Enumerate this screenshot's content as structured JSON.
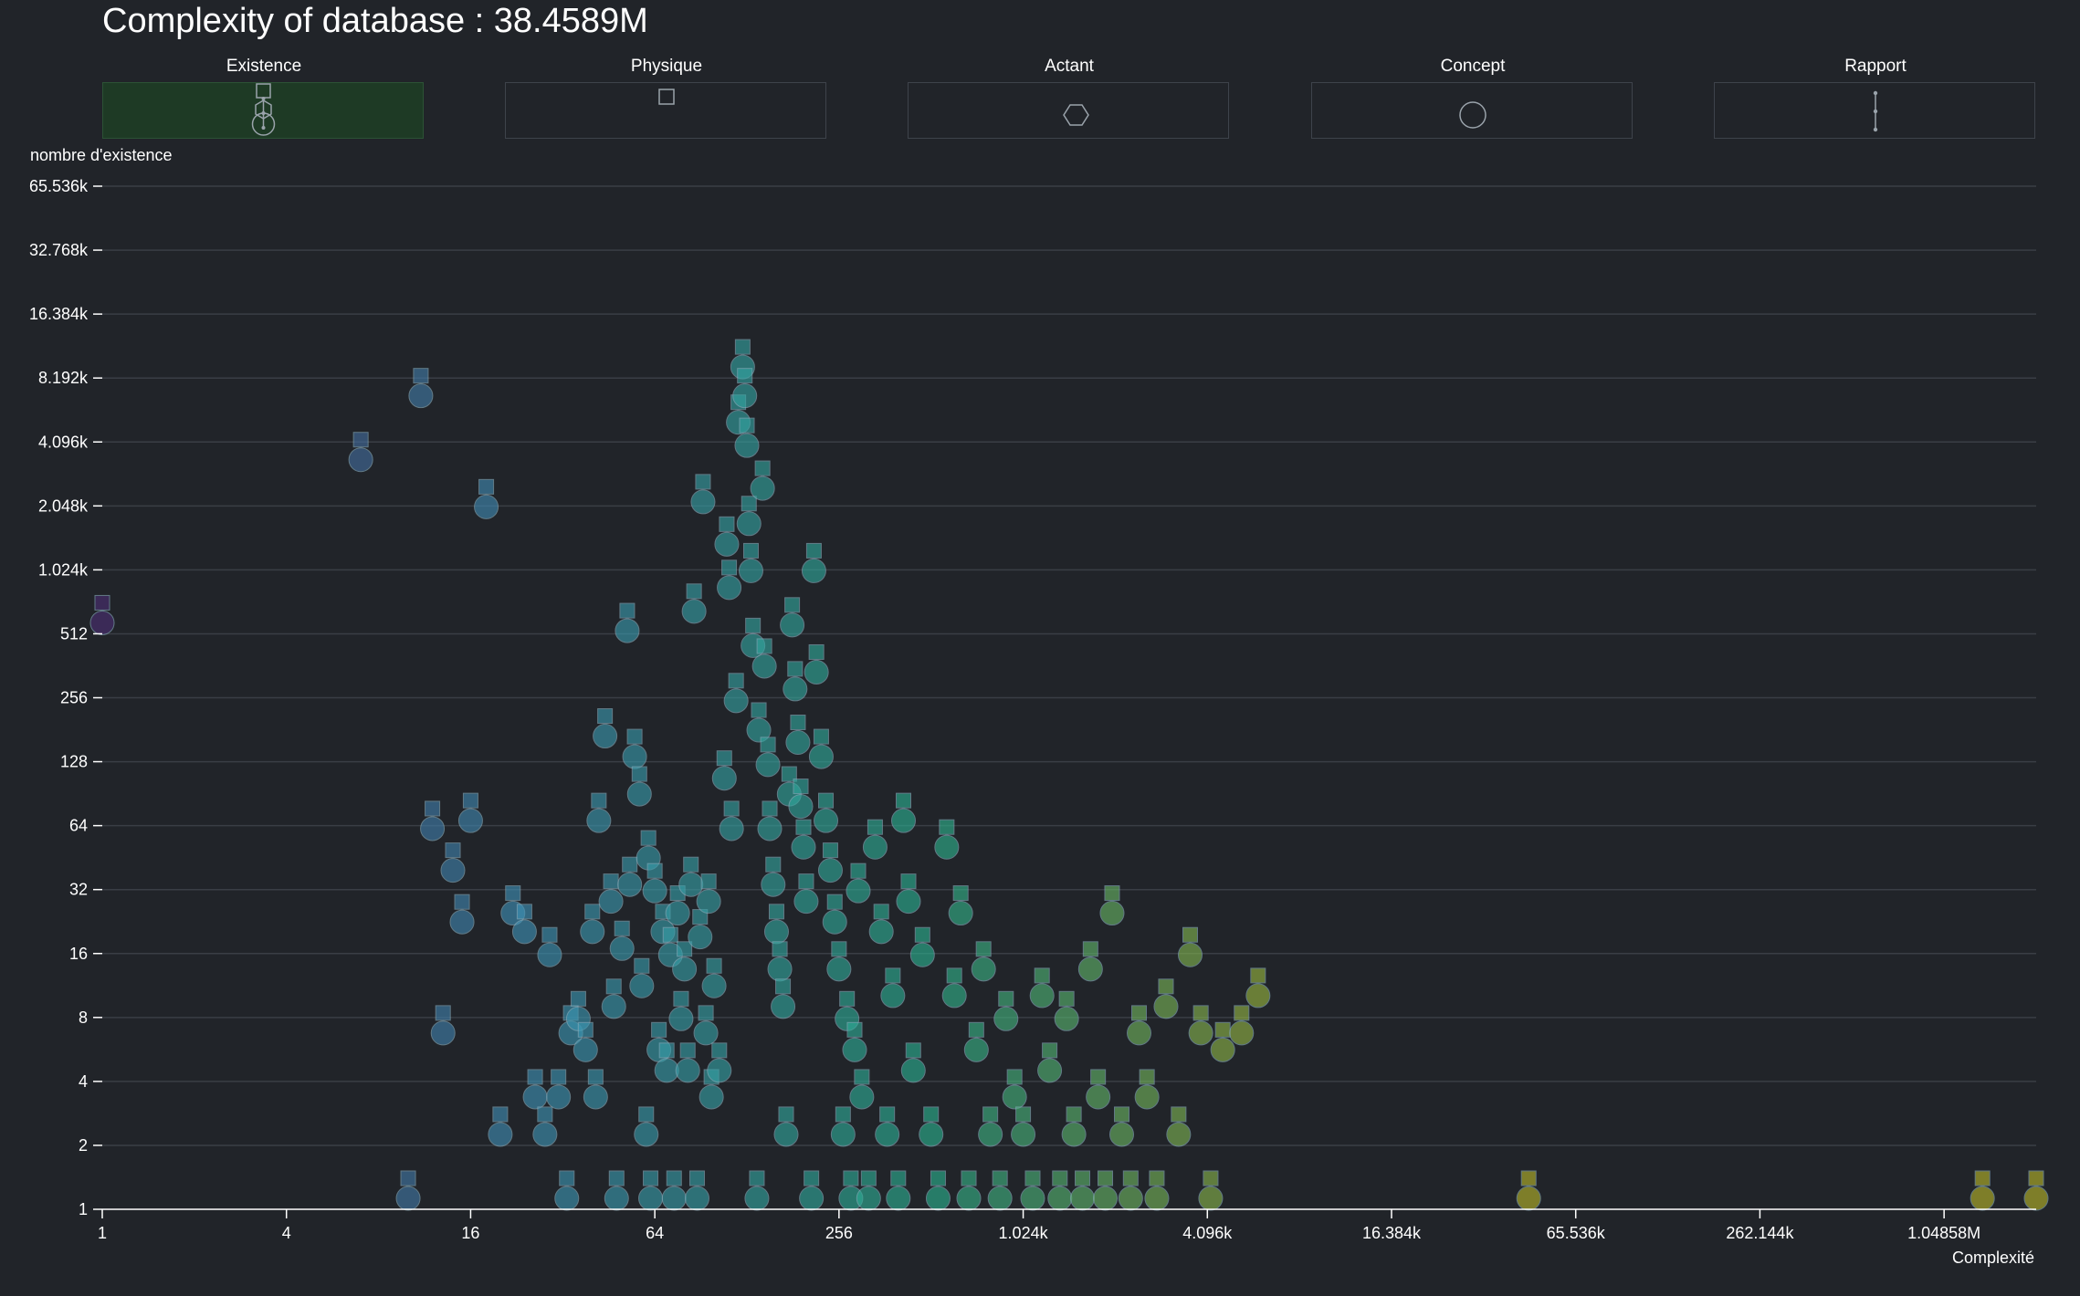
{
  "page": {
    "title": "Complexity of database : 38.4589M"
  },
  "tabs": [
    {
      "label": "Existence",
      "icon": "existence-composite-icon",
      "active": true
    },
    {
      "label": "Physique",
      "icon": "square-icon",
      "active": false
    },
    {
      "label": "Actant",
      "icon": "hexagon-icon",
      "active": false
    },
    {
      "label": "Concept",
      "icon": "circle-icon",
      "active": false
    },
    {
      "label": "Rapport",
      "icon": "vertical-link-icon",
      "active": false
    }
  ],
  "colors": {
    "background": "#212429",
    "grid": "#3a3e45",
    "active_tab": "#1e3a25",
    "scale_low": "#4b2f74",
    "scale_mid": "#3f92b8",
    "scale_high": "#2bb390",
    "scale_end": "#b7b52a"
  },
  "chart_data": {
    "type": "scatter",
    "xlabel": "Complexité",
    "ylabel": "nombre d'existence",
    "x_scale": "log2",
    "y_scale": "log2",
    "xlim": [
      1,
      2097152
    ],
    "ylim": [
      1,
      65536
    ],
    "grid": true,
    "x_ticks": [
      {
        "value": 1,
        "label": "1"
      },
      {
        "value": 4,
        "label": "4"
      },
      {
        "value": 16,
        "label": "16"
      },
      {
        "value": 64,
        "label": "64"
      },
      {
        "value": 256,
        "label": "256"
      },
      {
        "value": 1024,
        "label": "1.024k"
      },
      {
        "value": 4096,
        "label": "4.096k"
      },
      {
        "value": 16384,
        "label": "16.384k"
      },
      {
        "value": 65536,
        "label": "65.536k"
      },
      {
        "value": 262144,
        "label": "262.144k"
      },
      {
        "value": 1048576,
        "label": "1.04858M"
      }
    ],
    "y_ticks": [
      {
        "value": 1,
        "label": "1"
      },
      {
        "value": 2,
        "label": "2"
      },
      {
        "value": 4,
        "label": "4"
      },
      {
        "value": 8,
        "label": "8"
      },
      {
        "value": 16,
        "label": "16"
      },
      {
        "value": 32,
        "label": "32"
      },
      {
        "value": 64,
        "label": "64"
      },
      {
        "value": 128,
        "label": "128"
      },
      {
        "value": 256,
        "label": "256"
      },
      {
        "value": 512,
        "label": "512"
      },
      {
        "value": 1024,
        "label": "1.024k"
      },
      {
        "value": 2048,
        "label": "2.048k"
      },
      {
        "value": 4096,
        "label": "4.096k"
      },
      {
        "value": 8192,
        "label": "8.192k"
      },
      {
        "value": 16384,
        "label": "16.384k"
      },
      {
        "value": 32768,
        "label": "32.768k"
      },
      {
        "value": 65536,
        "label": "65.536k"
      }
    ],
    "points": [
      [
        1,
        512
      ],
      [
        10,
        1
      ],
      [
        7,
        3000
      ],
      [
        11,
        6000
      ],
      [
        12,
        55
      ],
      [
        13,
        6
      ],
      [
        14,
        35
      ],
      [
        15,
        20
      ],
      [
        16,
        60
      ],
      [
        18,
        1800
      ],
      [
        20,
        2
      ],
      [
        22,
        22
      ],
      [
        24,
        18
      ],
      [
        26,
        3
      ],
      [
        28,
        2
      ],
      [
        29,
        14
      ],
      [
        31,
        3
      ],
      [
        33,
        1
      ],
      [
        34,
        6
      ],
      [
        36,
        7
      ],
      [
        38,
        5
      ],
      [
        40,
        18
      ],
      [
        41,
        3
      ],
      [
        42,
        60
      ],
      [
        44,
        150
      ],
      [
        46,
        25
      ],
      [
        47,
        8
      ],
      [
        48,
        1
      ],
      [
        50,
        15
      ],
      [
        52,
        470
      ],
      [
        53,
        30
      ],
      [
        55,
        120
      ],
      [
        57,
        80
      ],
      [
        58,
        10
      ],
      [
        60,
        2
      ],
      [
        61,
        40
      ],
      [
        62,
        1
      ],
      [
        64,
        28
      ],
      [
        66,
        5
      ],
      [
        68,
        18
      ],
      [
        70,
        4
      ],
      [
        72,
        14
      ],
      [
        74,
        1
      ],
      [
        76,
        22
      ],
      [
        78,
        7
      ],
      [
        80,
        12
      ],
      [
        82,
        4
      ],
      [
        84,
        30
      ],
      [
        86,
        580
      ],
      [
        88,
        1
      ],
      [
        90,
        17
      ],
      [
        92,
        1900
      ],
      [
        94,
        6
      ],
      [
        96,
        25
      ],
      [
        98,
        3
      ],
      [
        100,
        10
      ],
      [
        104,
        4
      ],
      [
        108,
        95
      ],
      [
        110,
        1200
      ],
      [
        112,
        750
      ],
      [
        114,
        55
      ],
      [
        118,
        220
      ],
      [
        120,
        4500
      ],
      [
        124,
        8200
      ],
      [
        126,
        6000
      ],
      [
        128,
        3500
      ],
      [
        130,
        1500
      ],
      [
        132,
        900
      ],
      [
        134,
        400
      ],
      [
        138,
        1
      ],
      [
        140,
        160
      ],
      [
        144,
        2200
      ],
      [
        146,
        320
      ],
      [
        150,
        110
      ],
      [
        152,
        55
      ],
      [
        156,
        30
      ],
      [
        160,
        18
      ],
      [
        164,
        12
      ],
      [
        168,
        8
      ],
      [
        172,
        2
      ],
      [
        176,
        80
      ],
      [
        180,
        500
      ],
      [
        184,
        250
      ],
      [
        188,
        140
      ],
      [
        192,
        70
      ],
      [
        196,
        45
      ],
      [
        200,
        25
      ],
      [
        208,
        1
      ],
      [
        212,
        900
      ],
      [
        216,
        300
      ],
      [
        224,
        120
      ],
      [
        232,
        60
      ],
      [
        240,
        35
      ],
      [
        248,
        20
      ],
      [
        256,
        12
      ],
      [
        264,
        2
      ],
      [
        272,
        7
      ],
      [
        280,
        1
      ],
      [
        288,
        5
      ],
      [
        296,
        28
      ],
      [
        304,
        3
      ],
      [
        320,
        1
      ],
      [
        336,
        45
      ],
      [
        352,
        18
      ],
      [
        368,
        2
      ],
      [
        384,
        9
      ],
      [
        400,
        1
      ],
      [
        416,
        60
      ],
      [
        432,
        25
      ],
      [
        448,
        4
      ],
      [
        480,
        14
      ],
      [
        512,
        2
      ],
      [
        540,
        1
      ],
      [
        576,
        45
      ],
      [
        610,
        9
      ],
      [
        640,
        22
      ],
      [
        680,
        1
      ],
      [
        720,
        5
      ],
      [
        760,
        12
      ],
      [
        800,
        2
      ],
      [
        860,
        1
      ],
      [
        900,
        7
      ],
      [
        960,
        3
      ],
      [
        1024,
        2
      ],
      [
        1100,
        1
      ],
      [
        1180,
        9
      ],
      [
        1250,
        4
      ],
      [
        1350,
        1
      ],
      [
        1420,
        7
      ],
      [
        1500,
        2
      ],
      [
        1600,
        1
      ],
      [
        1700,
        12
      ],
      [
        1800,
        3
      ],
      [
        1900,
        1
      ],
      [
        2000,
        22
      ],
      [
        2150,
        2
      ],
      [
        2300,
        1
      ],
      [
        2450,
        6
      ],
      [
        2600,
        3
      ],
      [
        2800,
        1
      ],
      [
        3000,
        8
      ],
      [
        3300,
        2
      ],
      [
        3600,
        14
      ],
      [
        3900,
        6
      ],
      [
        4200,
        1
      ],
      [
        4600,
        5
      ],
      [
        5300,
        6
      ],
      [
        6000,
        9
      ],
      [
        46000,
        1
      ],
      [
        1400000,
        1
      ],
      [
        2097152,
        1
      ]
    ],
    "point_color_scale": [
      "#4b2f74",
      "#3f92b8",
      "#2bb390",
      "#b7b52a"
    ]
  }
}
